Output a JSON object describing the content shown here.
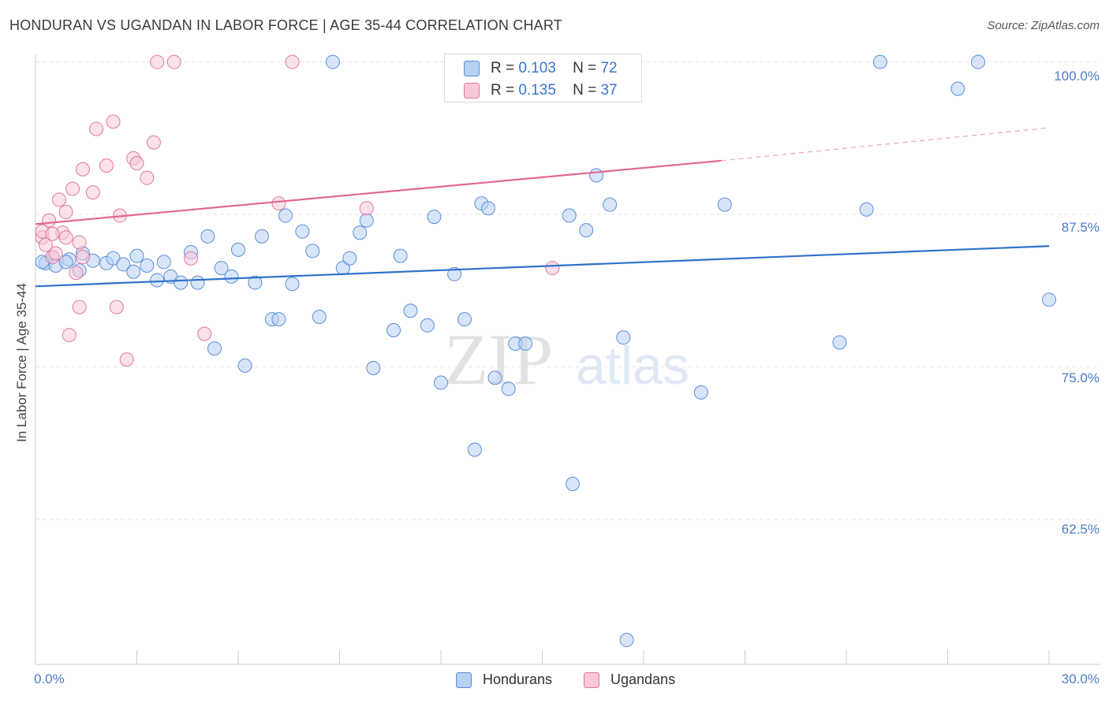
{
  "chart_data": {
    "type": "scatter",
    "title": "HONDURAN VS UGANDAN IN LABOR FORCE | AGE 35-44 CORRELATION CHART",
    "source": "Source: ZipAtlas.com",
    "xlabel": "",
    "ylabel": "In Labor Force | Age 35-44",
    "xlim": [
      0,
      30
    ],
    "ylim": [
      50.6,
      101.2
    ],
    "x_tick_labels": [
      "0.0%",
      "30.0%"
    ],
    "y_ticks": [
      100,
      87.5,
      75,
      62.5
    ],
    "y_tick_labels": [
      "100.0%",
      "87.5%",
      "75.0%",
      "62.5%"
    ],
    "watermark": {
      "zip": "ZIP",
      "atlas": "atlas"
    },
    "legend": {
      "r_label": "R =",
      "n_label": "N =",
      "entries": [
        {
          "name": "Hondurans",
          "r": "0.103",
          "n": "72"
        },
        {
          "name": "Ugandans",
          "r": "0.135",
          "n": "37"
        }
      ]
    },
    "series": [
      {
        "name": "Hondurans",
        "color": "#5a8fd8",
        "fill": "#b8d0f2",
        "line_color": "#2f72cc",
        "trend": {
          "x0": 0,
          "y0": 81.6,
          "x1": 30,
          "y1": 84.9
        },
        "points": [
          [
            0.3,
            83.5
          ],
          [
            0.5,
            84.0
          ],
          [
            0.6,
            83.3
          ],
          [
            1.0,
            83.8
          ],
          [
            1.4,
            84.3
          ],
          [
            1.7,
            83.7
          ],
          [
            2.1,
            83.5
          ],
          [
            2.3,
            83.9
          ],
          [
            2.6,
            83.4
          ],
          [
            2.9,
            82.8
          ],
          [
            3.0,
            84.1
          ],
          [
            3.3,
            83.3
          ],
          [
            3.6,
            82.1
          ],
          [
            3.8,
            83.6
          ],
          [
            4.0,
            82.4
          ],
          [
            4.3,
            81.9
          ],
          [
            4.6,
            84.4
          ],
          [
            4.8,
            81.9
          ],
          [
            5.1,
            85.7
          ],
          [
            5.3,
            76.5
          ],
          [
            5.5,
            83.1
          ],
          [
            5.8,
            82.4
          ],
          [
            6.0,
            84.6
          ],
          [
            6.2,
            75.1
          ],
          [
            6.5,
            81.9
          ],
          [
            6.7,
            85.7
          ],
          [
            7.0,
            78.9
          ],
          [
            7.2,
            78.9
          ],
          [
            7.4,
            87.4
          ],
          [
            7.6,
            81.8
          ],
          [
            7.9,
            86.1
          ],
          [
            8.2,
            84.5
          ],
          [
            8.4,
            79.1
          ],
          [
            8.8,
            100.0
          ],
          [
            9.1,
            83.1
          ],
          [
            9.3,
            83.9
          ],
          [
            9.6,
            86.0
          ],
          [
            9.8,
            87.0
          ],
          [
            10.0,
            74.9
          ],
          [
            10.6,
            78.0
          ],
          [
            10.8,
            84.1
          ],
          [
            11.1,
            79.6
          ],
          [
            11.6,
            78.4
          ],
          [
            11.8,
            87.3
          ],
          [
            12.0,
            73.7
          ],
          [
            12.4,
            82.6
          ],
          [
            12.7,
            78.9
          ],
          [
            13.0,
            68.2
          ],
          [
            13.2,
            88.4
          ],
          [
            13.4,
            88.0
          ],
          [
            13.6,
            74.1
          ],
          [
            14.0,
            73.2
          ],
          [
            14.2,
            76.9
          ],
          [
            14.5,
            76.9
          ],
          [
            15.8,
            87.4
          ],
          [
            15.9,
            65.4
          ],
          [
            16.3,
            86.2
          ],
          [
            16.6,
            90.7
          ],
          [
            17.0,
            88.3
          ],
          [
            17.4,
            77.4
          ],
          [
            17.5,
            52.6
          ],
          [
            19.7,
            72.9
          ],
          [
            20.4,
            88.3
          ],
          [
            23.8,
            77.0
          ],
          [
            24.6,
            87.9
          ],
          [
            25.0,
            100.0
          ],
          [
            27.3,
            97.8
          ],
          [
            27.9,
            100.0
          ],
          [
            30.0,
            80.5
          ],
          [
            0.2,
            83.6
          ],
          [
            0.9,
            83.6
          ],
          [
            1.3,
            82.9
          ]
        ]
      },
      {
        "name": "Ugandans",
        "color": "#e07aa0",
        "fill": "#f8c8d8",
        "line_color": "#e36690",
        "trend": {
          "x0": 0,
          "y0": 86.7,
          "x1": 20.3,
          "y1": 91.9
        },
        "trend_dashed_to": {
          "x": 30,
          "y": 94.6
        },
        "points": [
          [
            0.2,
            85.6
          ],
          [
            0.3,
            85.0
          ],
          [
            0.4,
            87.0
          ],
          [
            0.5,
            84.0
          ],
          [
            0.6,
            84.3
          ],
          [
            0.7,
            88.7
          ],
          [
            0.8,
            86.0
          ],
          [
            0.9,
            85.6
          ],
          [
            0.9,
            87.7
          ],
          [
            1.0,
            77.6
          ],
          [
            1.1,
            89.6
          ],
          [
            1.2,
            82.7
          ],
          [
            1.3,
            85.2
          ],
          [
            1.3,
            79.9
          ],
          [
            1.4,
            84.0
          ],
          [
            1.4,
            91.2
          ],
          [
            1.7,
            89.3
          ],
          [
            1.8,
            94.5
          ],
          [
            2.1,
            91.5
          ],
          [
            2.3,
            95.1
          ],
          [
            2.4,
            79.9
          ],
          [
            2.5,
            87.4
          ],
          [
            2.7,
            75.6
          ],
          [
            2.9,
            92.1
          ],
          [
            3.0,
            91.7
          ],
          [
            3.3,
            90.5
          ],
          [
            3.5,
            93.4
          ],
          [
            3.6,
            100.0
          ],
          [
            4.1,
            100.0
          ],
          [
            4.6,
            83.9
          ],
          [
            5.0,
            77.7
          ],
          [
            7.2,
            88.4
          ],
          [
            7.6,
            100.0
          ],
          [
            9.8,
            88.0
          ],
          [
            15.3,
            83.1
          ],
          [
            0.2,
            86.1
          ],
          [
            0.5,
            85.9
          ]
        ]
      }
    ]
  }
}
